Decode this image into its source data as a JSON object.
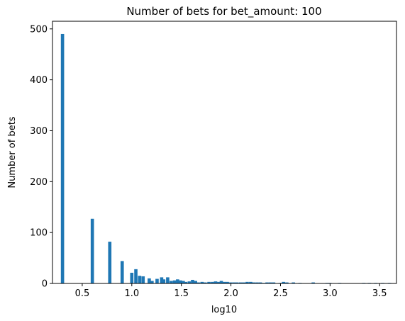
{
  "chart_data": {
    "type": "bar",
    "title": "Number of bets for bet_amount: 100",
    "xlabel": "log10",
    "ylabel": "Number of bets",
    "xlim": [
      0.2,
      3.67
    ],
    "ylim": [
      0,
      515
    ],
    "xticks": [
      0.5,
      1.0,
      1.5,
      2.0,
      2.5,
      3.0,
      3.5
    ],
    "xtick_labels": [
      "0.5",
      "1.0",
      "1.5",
      "2.0",
      "2.5",
      "3.0",
      "3.5"
    ],
    "yticks": [
      0,
      100,
      200,
      300,
      400,
      500
    ],
    "ytick_labels": [
      "0",
      "100",
      "200",
      "300",
      "400",
      "500"
    ],
    "bar_color": "#1f77b4",
    "bin_width": 0.0331,
    "grid": false,
    "legend": "none",
    "bins": {
      "x": [
        0.301,
        0.602,
        0.778,
        0.903,
        1.0,
        1.041,
        1.079,
        1.114,
        1.176,
        1.204,
        1.255,
        1.301,
        1.322,
        1.362,
        1.398,
        1.431,
        1.462,
        1.491,
        1.519,
        1.544,
        1.58,
        1.613,
        1.643,
        1.671,
        1.708,
        1.74,
        1.778,
        1.813,
        1.845,
        1.875,
        1.903,
        1.934,
        1.964,
        1.996,
        2.029,
        2.061,
        2.097,
        2.13,
        2.164,
        2.199,
        2.23,
        2.264,
        2.297,
        2.33,
        2.364,
        2.397,
        2.431,
        2.497,
        2.53,
        2.564,
        2.63,
        2.697,
        2.83,
        2.97,
        3.0,
        3.097,
        3.34,
        3.397,
        3.46,
        3.53,
        3.6
      ],
      "values": [
        490,
        127,
        82,
        44,
        21,
        28,
        15,
        14,
        10,
        5,
        9,
        12,
        8,
        12,
        5,
        6,
        8,
        6,
        5,
        3,
        4,
        7,
        5,
        2,
        3,
        2,
        3,
        3,
        4,
        3,
        5,
        3,
        3,
        2,
        2,
        2,
        2,
        2,
        3,
        3,
        2,
        2,
        2,
        1,
        2,
        2,
        2,
        1,
        3,
        2,
        2,
        1,
        2,
        1,
        1,
        1,
        1,
        1,
        1,
        1,
        1
      ]
    }
  }
}
